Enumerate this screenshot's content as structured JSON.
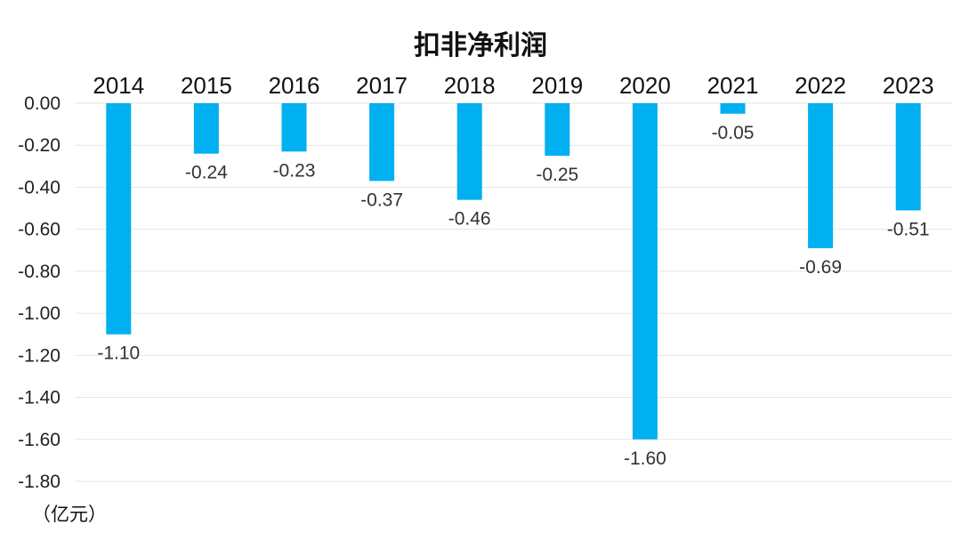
{
  "chart_data": {
    "type": "bar",
    "title": "扣非净利润",
    "unit_label": "（亿元）",
    "categories": [
      "2014",
      "2015",
      "2016",
      "2017",
      "2018",
      "2019",
      "2020",
      "2021",
      "2022",
      "2023"
    ],
    "values": [
      -1.1,
      -0.24,
      -0.23,
      -0.37,
      -0.46,
      -0.25,
      -1.6,
      -0.05,
      -0.69,
      -0.51
    ],
    "data_labels": [
      "-1.10",
      "-0.24",
      "-0.23",
      "-0.37",
      "-0.46",
      "-0.25",
      "-1.60",
      "-0.05",
      "-0.69",
      "-0.51"
    ],
    "ylim": [
      -1.8,
      0.0
    ],
    "yticks": [
      "0.00",
      "-0.20",
      "-0.40",
      "-0.60",
      "-0.80",
      "-1.00",
      "-1.20",
      "-1.40",
      "-1.60",
      "-1.80"
    ],
    "category_axis_position": "top",
    "grid": true,
    "bar_color": "#00B0F0",
    "grid_color": "#E6E6E6"
  }
}
